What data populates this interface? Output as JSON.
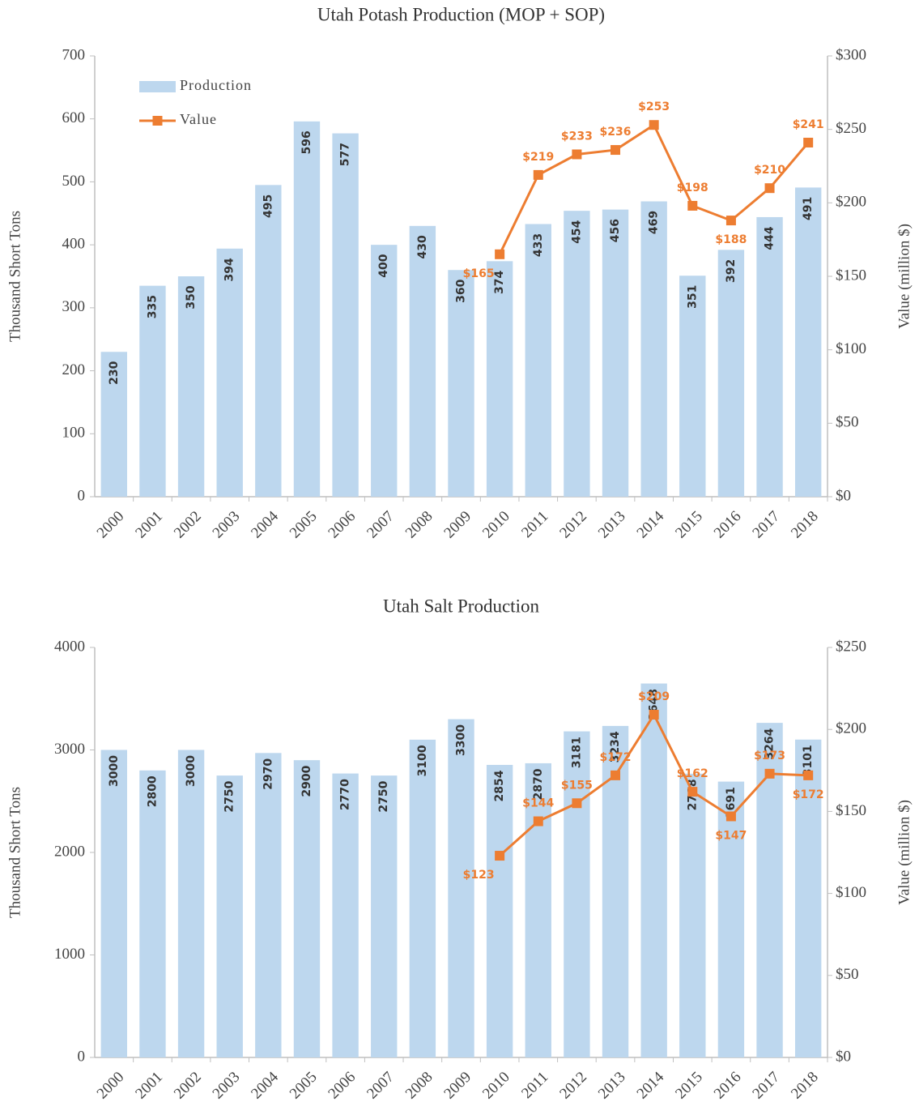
{
  "chart_data": [
    {
      "type": "bar",
      "title": "Utah Potash Production (MOP + SOP)",
      "y_label": "Thousand Short Tons",
      "y2_label": "Value (million $)",
      "categories": [
        "2000",
        "2001",
        "2002",
        "2003",
        "2004",
        "2005",
        "2006",
        "2007",
        "2008",
        "2009",
        "2010",
        "2011",
        "2012",
        "2013",
        "2014",
        "2015",
        "2016",
        "2017",
        "2018"
      ],
      "series": [
        {
          "name": "Production",
          "type": "bar",
          "color": "#bdd7ee",
          "values": [
            230,
            335,
            350,
            394,
            495,
            596,
            577,
            400,
            430,
            360,
            374,
            433,
            454,
            456,
            469,
            351,
            392,
            444,
            491
          ]
        },
        {
          "name": "Value",
          "type": "line",
          "axis": "y2",
          "color": "#ed7d31",
          "values": [
            null,
            null,
            null,
            null,
            null,
            null,
            null,
            null,
            null,
            null,
            165,
            219,
            233,
            236,
            253,
            198,
            188,
            210,
            241
          ],
          "value_labels": [
            null,
            null,
            null,
            null,
            null,
            null,
            null,
            null,
            null,
            null,
            "$165",
            "$219",
            "$233",
            "$236",
            "$253",
            "$198",
            "$188",
            "$210",
            "$241"
          ]
        }
      ],
      "ylim": [
        0,
        700
      ],
      "yticks": [
        0,
        100,
        200,
        300,
        400,
        500,
        600,
        700
      ],
      "y2lim": [
        0,
        300
      ],
      "y2ticks": [
        {
          "value": 0,
          "label": "$0"
        },
        {
          "value": 50,
          "label": "$50"
        },
        {
          "value": 100,
          "label": "$100"
        },
        {
          "value": 150,
          "label": "$150"
        },
        {
          "value": 200,
          "label": "$200"
        },
        {
          "value": 250,
          "label": "$250"
        },
        {
          "value": 300,
          "label": "$300"
        }
      ],
      "legend": "top-left"
    },
    {
      "type": "bar",
      "title": "Utah Salt Production",
      "y_label": "Thousand Short Tons",
      "y2_label": "Value (million $)",
      "categories": [
        "2000",
        "2001",
        "2002",
        "2003",
        "2004",
        "2005",
        "2006",
        "2007",
        "2008",
        "2009",
        "2010",
        "2011",
        "2012",
        "2013",
        "2014",
        "2015",
        "2016",
        "2017",
        "2018"
      ],
      "series": [
        {
          "type": "bar",
          "color": "#bdd7ee",
          "values": [
            3000,
            2800,
            3000,
            2750,
            2970,
            2900,
            2770,
            2750,
            3100,
            3300,
            2854,
            2870,
            3181,
            3234,
            3648,
            2768,
            2691,
            3264,
            3101
          ]
        },
        {
          "type": "line",
          "axis": "y2",
          "color": "#ed7d31",
          "values": [
            null,
            null,
            null,
            null,
            null,
            null,
            null,
            null,
            null,
            null,
            123,
            144,
            155,
            172,
            209,
            162,
            147,
            173,
            172
          ],
          "value_labels": [
            null,
            null,
            null,
            null,
            null,
            null,
            null,
            null,
            null,
            null,
            "$123",
            "$144",
            "$155",
            "$172",
            "$209",
            "$162",
            "$147",
            "$173",
            "$172"
          ]
        }
      ],
      "ylim": [
        0,
        4000
      ],
      "yticks": [
        0,
        1000,
        2000,
        3000,
        4000
      ],
      "y2lim": [
        0,
        250
      ],
      "y2ticks": [
        {
          "value": 0,
          "label": "$0"
        },
        {
          "value": 50,
          "label": "$50"
        },
        {
          "value": 100,
          "label": "$100"
        },
        {
          "value": 150,
          "label": "$150"
        },
        {
          "value": 200,
          "label": "$200"
        },
        {
          "value": 250,
          "label": "$250"
        }
      ]
    }
  ]
}
